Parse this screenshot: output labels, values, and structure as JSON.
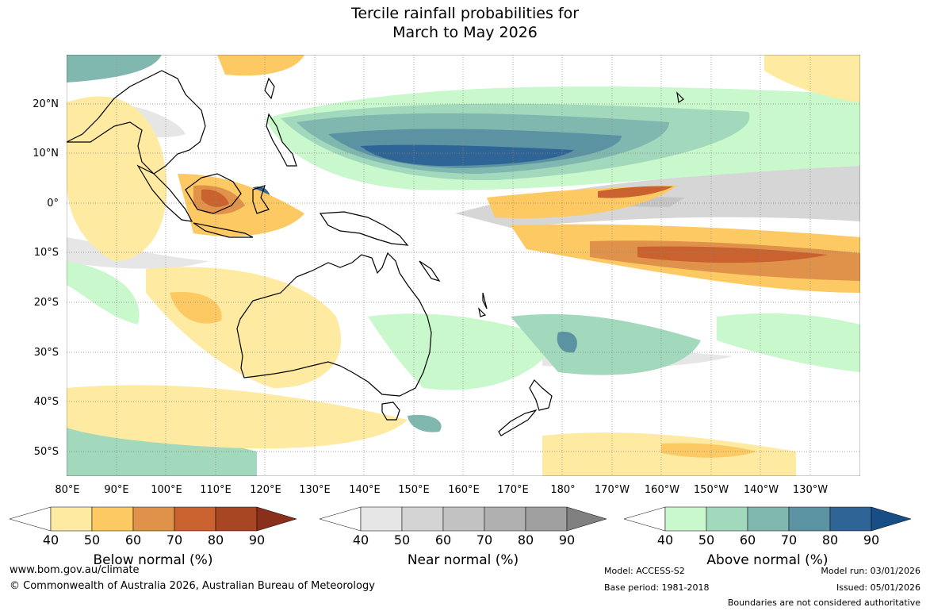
{
  "title": {
    "line1": "Tercile rainfall probabilities for",
    "line2": "March to May 2026"
  },
  "map": {
    "latitude_labels": [
      "20°N",
      "10°N",
      "0°",
      "10°S",
      "20°S",
      "30°S",
      "40°S",
      "50°S"
    ],
    "longitude_labels": [
      "80°E",
      "90°E",
      "100°E",
      "110°E",
      "120°E",
      "130°E",
      "140°E",
      "150°E",
      "160°E",
      "170°E",
      "180°",
      "170°W",
      "160°W",
      "150°W",
      "140°W",
      "130°W"
    ]
  },
  "colorbars": [
    {
      "label": "Below normal (%)",
      "ticks": [
        "40",
        "50",
        "60",
        "70",
        "80",
        "90"
      ],
      "colors": [
        "#ffffff",
        "#feeaa0",
        "#fdc963",
        "#e0924a",
        "#c9622e",
        "#a84522",
        "#8a2f1c"
      ]
    },
    {
      "label": "Near normal (%)",
      "ticks": [
        "40",
        "50",
        "60",
        "70",
        "80",
        "90"
      ],
      "colors": [
        "#ffffff",
        "#e6e6e6",
        "#d4d4d4",
        "#c2c2c2",
        "#b0b0b0",
        "#a0a0a0",
        "#808080"
      ]
    },
    {
      "label": "Above normal (%)",
      "ticks": [
        "40",
        "50",
        "60",
        "70",
        "80",
        "90"
      ],
      "colors": [
        "#ffffff",
        "#c8f8cc",
        "#a2d8bc",
        "#80b8b0",
        "#5b93a3",
        "#2f6496",
        "#174e86"
      ]
    }
  ],
  "footer": {
    "website": "www.bom.gov.au/climate",
    "copyright": "© Commonwealth of Australia 2026, Australian Bureau of Meteorology",
    "model": "Model: ACCESS-S2",
    "base_period": "Base period: 1981-2018",
    "model_run": "Model run: 03/01/2026",
    "issued": "Issued: 05/01/2026",
    "disclaimer": "Boundaries are not considered authoritative"
  }
}
